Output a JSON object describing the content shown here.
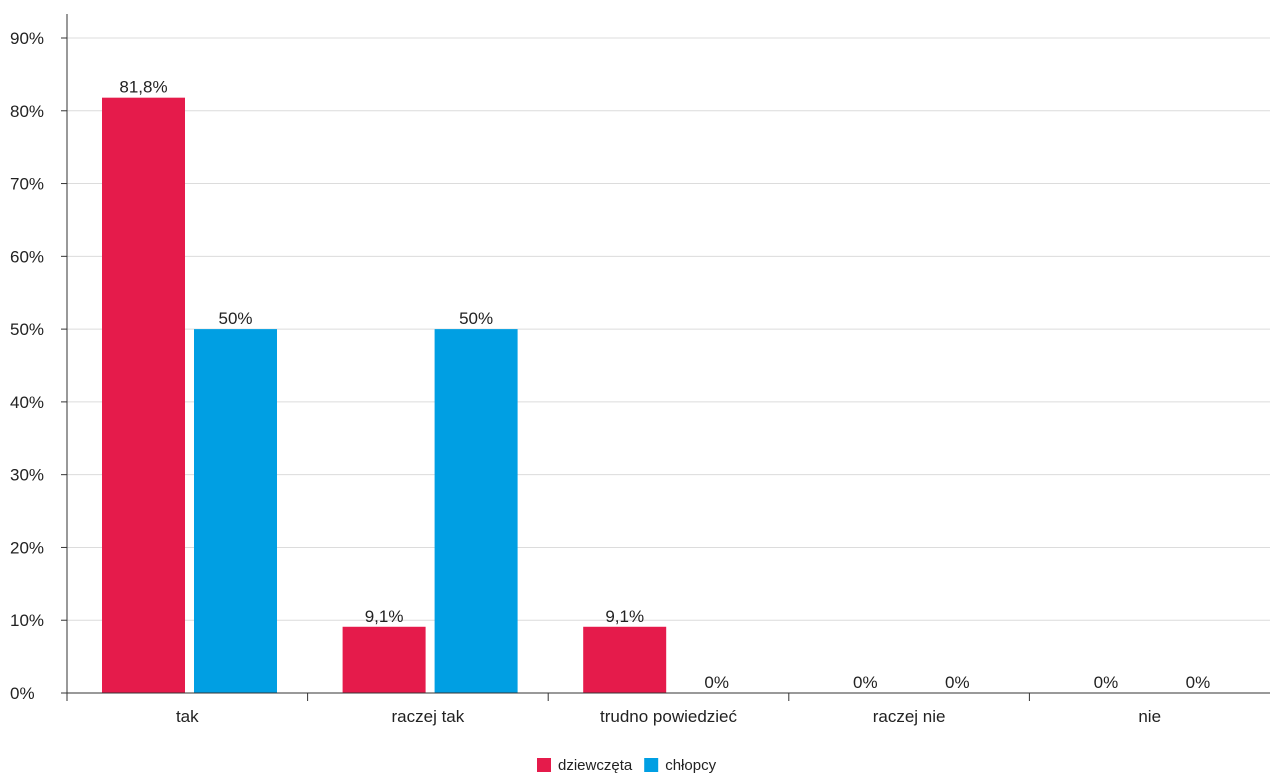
{
  "chart_data": {
    "type": "bar",
    "title": "",
    "xlabel": "",
    "ylabel": "",
    "categories": [
      "tak",
      "raczej tak",
      "trudno powiedzieć",
      "raczej nie",
      "nie"
    ],
    "series": [
      {
        "name": "dziewczęta",
        "color": "#e51b4b",
        "values": [
          81.8,
          9.1,
          9.1,
          0,
          0
        ],
        "labels": [
          "81,8%",
          "9,1%",
          "9,1%",
          "0%",
          "0%"
        ]
      },
      {
        "name": "chłopcy",
        "color": "#009fe3",
        "values": [
          50,
          50,
          0,
          0,
          0
        ],
        "labels": [
          "50%",
          "50%",
          "0%",
          "0%",
          "0%"
        ]
      }
    ],
    "ylim": [
      0,
      90
    ],
    "yticks": [
      0,
      10,
      20,
      30,
      40,
      50,
      60,
      70,
      80,
      90
    ],
    "ytick_labels": [
      "0%",
      "10%",
      "20%",
      "30%",
      "40%",
      "50%",
      "60%",
      "70%",
      "80%",
      "90%"
    ],
    "grid": true,
    "legend_position": "bottom-center"
  }
}
